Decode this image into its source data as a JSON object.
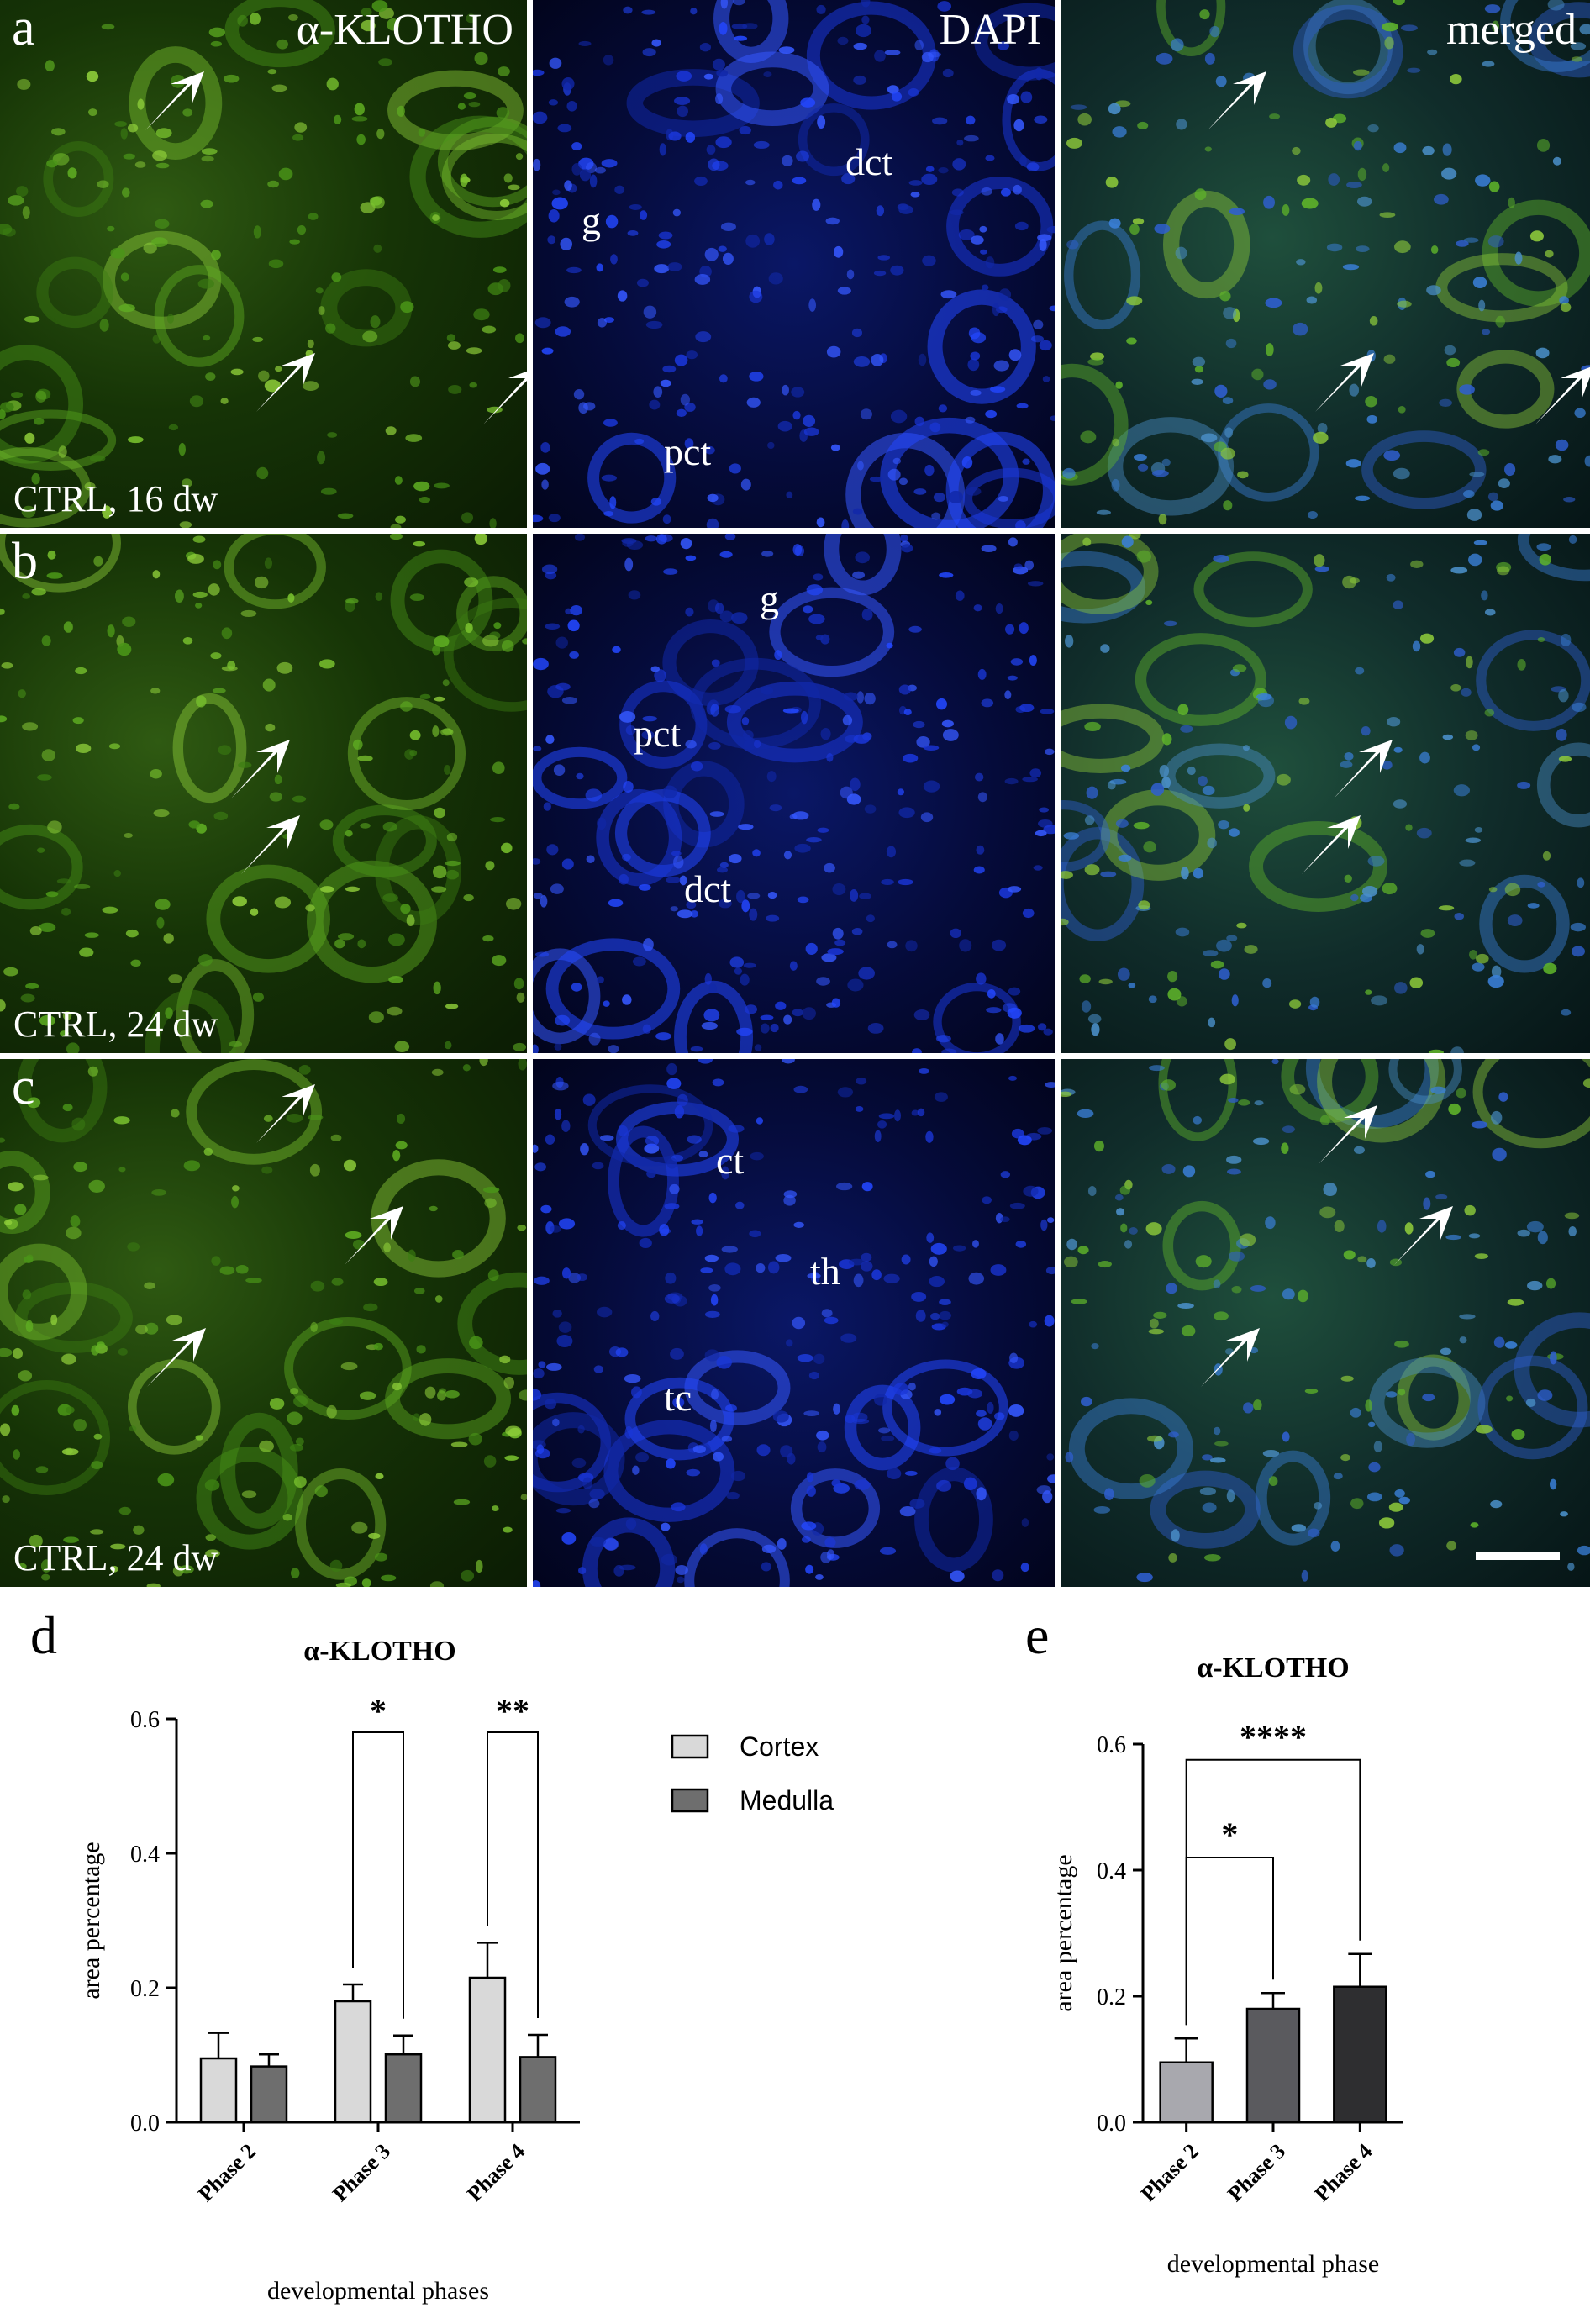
{
  "microscopy": {
    "rows": [
      {
        "letter": "a",
        "condition": "CTRL, 16 dw",
        "panels": [
          {
            "type": "klotho",
            "corner_label": "α-KLOTHO",
            "structures": []
          },
          {
            "type": "dapi",
            "corner_label": "DAPI",
            "structures": [
              "g",
              "dct",
              "pct"
            ]
          },
          {
            "type": "merged",
            "corner_label": "merged",
            "structures": []
          }
        ]
      },
      {
        "letter": "b",
        "condition": "CTRL, 24 dw",
        "panels": [
          {
            "type": "klotho",
            "corner_label": "",
            "structures": []
          },
          {
            "type": "dapi",
            "corner_label": "",
            "structures": [
              "g",
              "pct",
              "dct"
            ]
          },
          {
            "type": "merged",
            "corner_label": "",
            "structures": []
          }
        ]
      },
      {
        "letter": "c",
        "condition": "CTRL, 24 dw",
        "panels": [
          {
            "type": "klotho",
            "corner_label": "",
            "structures": []
          },
          {
            "type": "dapi",
            "corner_label": "",
            "structures": [
              "ct",
              "th",
              "tc"
            ]
          },
          {
            "type": "merged",
            "corner_label": "",
            "structures": []
          }
        ]
      }
    ],
    "colors": {
      "klotho": "#4fb01c",
      "dapi": "#1d3fe0",
      "merged": "#3a9a8a",
      "arrow": "#ffffff",
      "divider": "#ffffff"
    },
    "icons": [
      "arrow-icon",
      "scale-bar"
    ]
  },
  "chart_data": [
    {
      "panel_letter": "d",
      "type": "bar",
      "title": "α-KLOTHO",
      "xlabel": "developmental phases",
      "ylabel": "area percentage",
      "categories": [
        "Phase 2",
        "Phase 3",
        "Phase 4"
      ],
      "series": [
        {
          "name": "Cortex",
          "values": [
            0.095,
            0.18,
            0.215
          ],
          "errors": [
            0.038,
            0.025,
            0.052
          ],
          "color": "#d9d9d9"
        },
        {
          "name": "Medulla",
          "values": [
            0.083,
            0.101,
            0.097
          ],
          "errors": [
            0.018,
            0.028,
            0.033
          ],
          "color": "#6e6e6e"
        }
      ],
      "ylim": [
        0,
        0.6
      ],
      "yticks": [
        "0.0",
        "0.2",
        "0.4",
        "0.6"
      ],
      "significance": [
        {
          "category": "Phase 3",
          "label": "*"
        },
        {
          "category": "Phase 4",
          "label": "**"
        }
      ],
      "legend": {
        "placement": "right",
        "entries": [
          "Cortex",
          "Medulla"
        ]
      },
      "grid": false
    },
    {
      "panel_letter": "e",
      "type": "bar",
      "title": "α-KLOTHO",
      "xlabel": "developmental phase",
      "ylabel": "area percentage",
      "categories": [
        "Phase 2",
        "Phase 3",
        "Phase 4"
      ],
      "values": [
        0.095,
        0.18,
        0.215
      ],
      "errors": [
        0.038,
        0.025,
        0.052
      ],
      "colors": [
        "#a8a8ae",
        "#5a5a5e",
        "#2e2e30"
      ],
      "ylim": [
        0,
        0.6
      ],
      "yticks": [
        "0.0",
        "0.2",
        "0.4",
        "0.6"
      ],
      "significance": [
        {
          "from": "Phase 2",
          "to": "Phase 3",
          "label": "*"
        },
        {
          "from": "Phase 2",
          "to": "Phase 4",
          "label": "****"
        }
      ],
      "grid": false
    }
  ]
}
